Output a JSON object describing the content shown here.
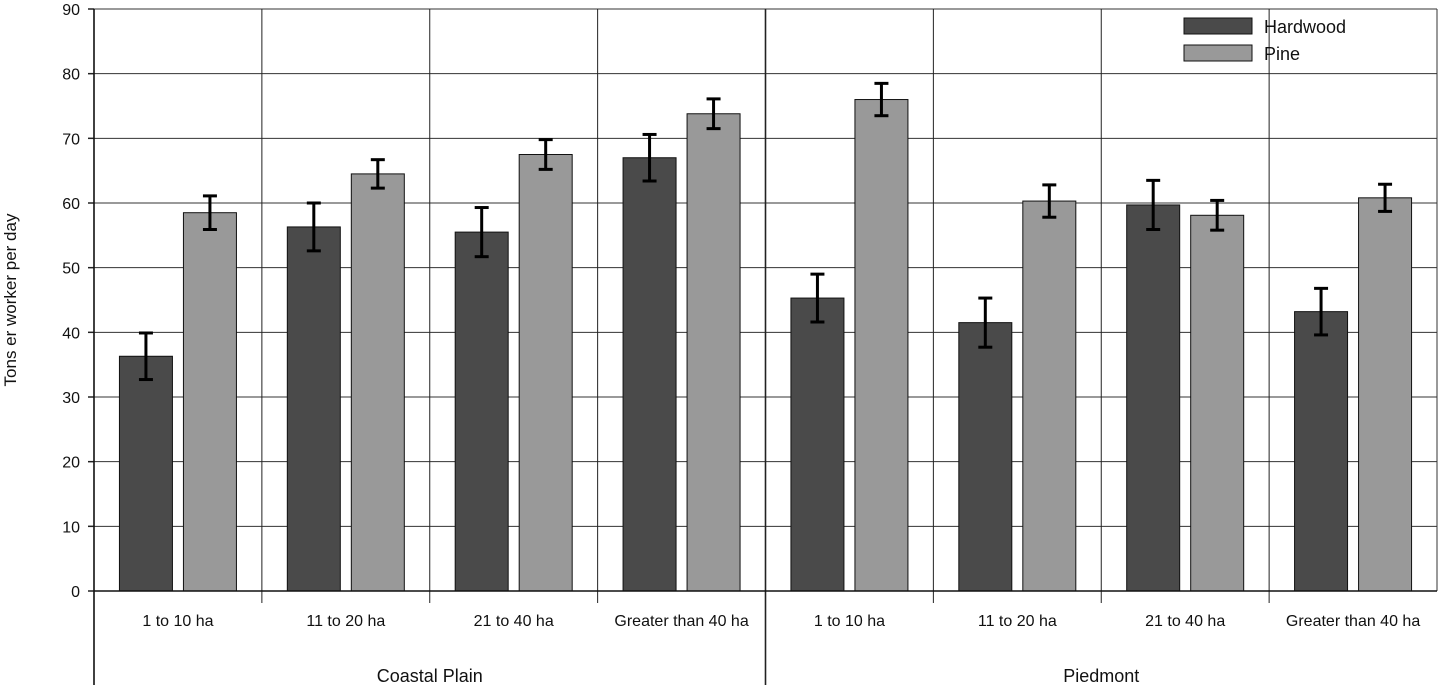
{
  "chart_data": {
    "type": "bar",
    "ylabel": "Tons er worker per day",
    "ylim": [
      0,
      90
    ],
    "yticks": [
      0,
      10,
      20,
      30,
      40,
      50,
      60,
      70,
      80,
      90
    ],
    "grid": true,
    "legend_position": "top-right",
    "groups": [
      {
        "label": "Coastal Plain",
        "categories": [
          "1 to 10 ha",
          "11 to 20 ha",
          "21 to 40 ha",
          "Greater than 40 ha"
        ]
      },
      {
        "label": "Piedmont",
        "categories": [
          "1 to 10 ha",
          "11 to 20 ha",
          "21 to 40 ha",
          "Greater than 40 ha"
        ]
      }
    ],
    "series": [
      {
        "name": "Hardwood",
        "color": "#4a4a4a",
        "values": [
          36.3,
          56.3,
          55.5,
          67.0,
          45.3,
          41.5,
          59.7,
          43.2
        ],
        "error": [
          3.6,
          3.7,
          3.8,
          3.6,
          3.7,
          3.8,
          3.8,
          3.6
        ]
      },
      {
        "name": "Pine",
        "color": "#999999",
        "values": [
          58.5,
          64.5,
          67.5,
          73.8,
          76.0,
          60.3,
          58.1,
          60.8
        ],
        "error": [
          2.6,
          2.2,
          2.3,
          2.3,
          2.5,
          2.5,
          2.3,
          2.1
        ]
      }
    ]
  }
}
